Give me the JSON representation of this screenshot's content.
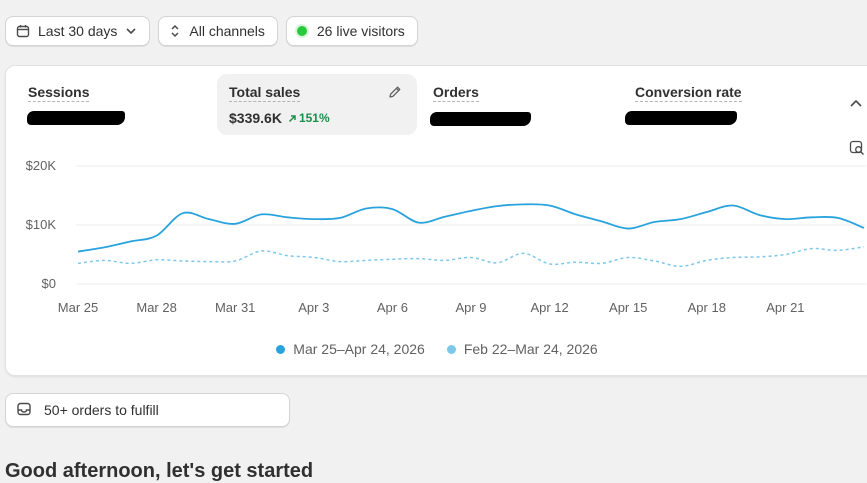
{
  "filters": {
    "date_range": "Last 30 days",
    "channels": "All channels",
    "live_visitors": "26 live visitors"
  },
  "metrics": [
    {
      "label": "Sessions",
      "value": "",
      "redacted": true
    },
    {
      "label": "Total sales",
      "value": "$339.6K",
      "change": "151%",
      "active": true
    },
    {
      "label": "Orders",
      "value": "",
      "redacted": true
    },
    {
      "label": "Conversion rate",
      "value": "",
      "redacted": true
    }
  ],
  "chart_data": {
    "type": "line",
    "title": "",
    "xlabel": "",
    "ylabel": "",
    "ylim": [
      0,
      20000
    ],
    "yticks": [
      0,
      10000,
      20000
    ],
    "ytick_labels": [
      "$0",
      "$10K",
      "$20K"
    ],
    "xtick_labels": [
      "Mar 25",
      "Mar 28",
      "Mar 31",
      "Apr 3",
      "Apr 6",
      "Apr 9",
      "Apr 12",
      "Apr 15",
      "Apr 18",
      "Apr 21"
    ],
    "grid": true,
    "legend_position": "bottom",
    "series": [
      {
        "name": "Mar 25–Apr 24, 2026",
        "color": "#29a3dd",
        "style": "solid",
        "values": [
          5500,
          6200,
          7200,
          8200,
          12000,
          11000,
          10200,
          11800,
          11300,
          11000,
          11200,
          12800,
          12700,
          10400,
          11400,
          12400,
          13200,
          13500,
          13300,
          11800,
          10600,
          9400,
          10500,
          11000,
          12200,
          13300,
          11700,
          11000,
          11300,
          11200,
          9500
        ]
      },
      {
        "name": "Feb 22–Mar 24, 2026",
        "color": "#7cc8ec",
        "style": "dashed",
        "values": [
          3500,
          4000,
          3500,
          4100,
          3900,
          3800,
          3900,
          5600,
          4800,
          4500,
          3800,
          4000,
          4200,
          4300,
          4000,
          4500,
          3600,
          5200,
          3400,
          3700,
          3500,
          4500,
          3900,
          3000,
          4000,
          4500,
          4600,
          5000,
          6000,
          5700,
          6300
        ]
      }
    ]
  },
  "fulfill": {
    "label": "50+ orders to fulfill"
  },
  "greeting": "Good afternoon, let's get started"
}
